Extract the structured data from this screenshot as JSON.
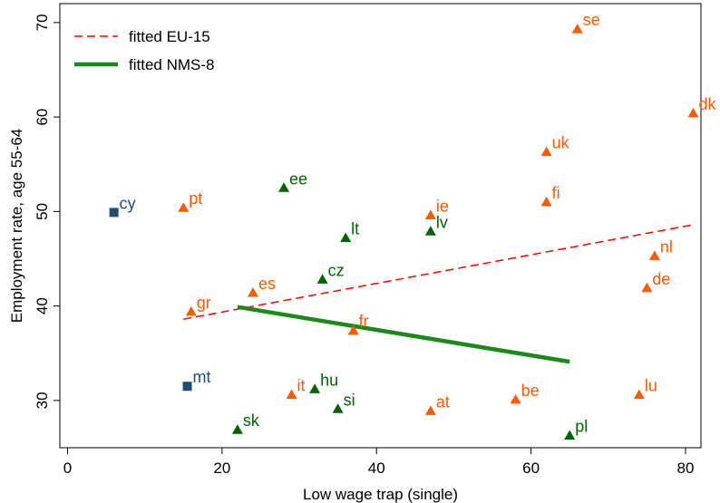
{
  "chart_data": {
    "type": "scatter",
    "xlabel": "Low wage trap (single)",
    "ylabel": "Employment rate, age 55-64",
    "xlim": [
      -1,
      82
    ],
    "ylim": [
      25,
      72
    ],
    "xticks": [
      0,
      20,
      40,
      60,
      80
    ],
    "yticks": [
      30,
      40,
      50,
      60,
      70
    ],
    "grid": false,
    "legend_position": "top-left",
    "colors": {
      "eu15": "#ff5a00",
      "nms8": "#006400",
      "other": "#1f4e79",
      "fit_eu15": "#ff0000",
      "fit_nms8": "#1a8a1a"
    },
    "series": [
      {
        "group": "eu15",
        "marker": "triangle",
        "points": [
          {
            "label": "se",
            "x": 66,
            "y": 69.3
          },
          {
            "label": "dk",
            "x": 81,
            "y": 60.4
          },
          {
            "label": "uk",
            "x": 62,
            "y": 56.3
          },
          {
            "label": "fi",
            "x": 62,
            "y": 51.0
          },
          {
            "label": "pt",
            "x": 15,
            "y": 50.4
          },
          {
            "label": "ie",
            "x": 47,
            "y": 49.6
          },
          {
            "label": "nl",
            "x": 76,
            "y": 45.3
          },
          {
            "label": "de",
            "x": 75,
            "y": 41.9
          },
          {
            "label": "es",
            "x": 24,
            "y": 41.4
          },
          {
            "label": "gr",
            "x": 16,
            "y": 39.4
          },
          {
            "label": "fr",
            "x": 37,
            "y": 37.4
          },
          {
            "label": "it",
            "x": 29,
            "y": 30.6
          },
          {
            "label": "lu",
            "x": 74,
            "y": 30.6
          },
          {
            "label": "be",
            "x": 58,
            "y": 30.1
          },
          {
            "label": "at",
            "x": 47,
            "y": 28.9
          }
        ]
      },
      {
        "group": "nms8",
        "marker": "triangle",
        "points": [
          {
            "label": "ee",
            "x": 28,
            "y": 52.5
          },
          {
            "label": "lt",
            "x": 36,
            "y": 47.2
          },
          {
            "label": "lv",
            "x": 47,
            "y": 47.9
          },
          {
            "label": "cz",
            "x": 33,
            "y": 42.8
          },
          {
            "label": "hu",
            "x": 32,
            "y": 31.2
          },
          {
            "label": "si",
            "x": 35,
            "y": 29.1
          },
          {
            "label": "sk",
            "x": 22,
            "y": 26.9
          },
          {
            "label": "pl",
            "x": 65,
            "y": 26.3
          }
        ]
      },
      {
        "group": "other",
        "marker": "square",
        "points": [
          {
            "label": "cy",
            "x": 6,
            "y": 49.9
          },
          {
            "label": "mt",
            "x": 15.5,
            "y": 31.5
          }
        ]
      }
    ],
    "fits": [
      {
        "name": "fitted EU-15",
        "group": "fit_eu15",
        "style": "dashed",
        "x": [
          15,
          81
        ],
        "y": [
          38.6,
          48.6
        ]
      },
      {
        "name": "fitted NMS-8",
        "group": "fit_nms8",
        "style": "solid",
        "x": [
          22,
          65
        ],
        "y": [
          39.9,
          34.1
        ]
      }
    ]
  }
}
